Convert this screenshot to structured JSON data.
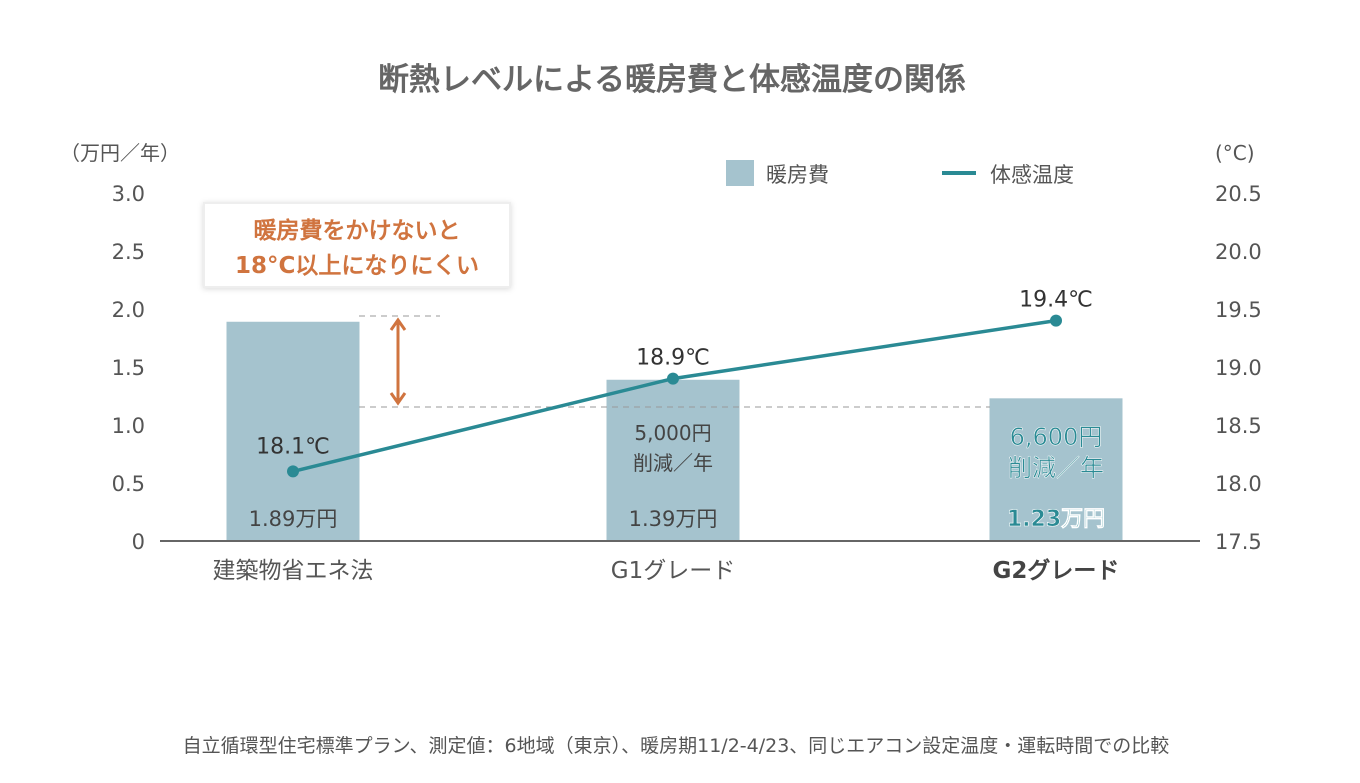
{
  "chart_data": {
    "type": "bar",
    "title": "断熱レベルによる暖房費と体感温度の関係",
    "categories": [
      "建築物省エネ法",
      "G1グレード",
      "G2グレード"
    ],
    "y_left": {
      "label": "（万円／年）",
      "ylim": [
        0,
        3.0
      ],
      "ticks": [
        "0",
        "0.5",
        "1.0",
        "1.5",
        "2.0",
        "2.5",
        "3.0"
      ]
    },
    "y_right": {
      "label": "(°C)",
      "ylim": [
        17.5,
        20.5
      ],
      "ticks": [
        "17.5",
        "18.0",
        "18.5",
        "19.0",
        "19.5",
        "20.0",
        "20.5"
      ]
    },
    "series": [
      {
        "name": "暖房費",
        "type": "bar",
        "axis": "left",
        "values": [
          1.89,
          1.39,
          1.23
        ],
        "labels": [
          "1.89万円",
          "1.39万円",
          "1.23万円"
        ]
      },
      {
        "name": "体感温度",
        "type": "line",
        "axis": "right",
        "values": [
          18.1,
          18.9,
          19.4
        ],
        "labels": [
          "18.1℃",
          "18.9℃",
          "19.4℃"
        ]
      }
    ],
    "savings": [
      {
        "amount": "5,000円",
        "unit": "削減／年"
      },
      {
        "amount": "6,600円",
        "unit": "削減／年"
      }
    ],
    "annotation": {
      "line1": "暖房費をかけないと",
      "line2": "18°C以上になりにくい"
    },
    "legend_placement": "top-right",
    "footnote": "自立循環型住宅標準プラン、測定値：6地域（東京）、暖房期11/2-4/23、同じエアコン設定温度・運転時間での比較",
    "colors": {
      "bar": "#a5c3ce",
      "line": "#2a8a94",
      "annotation": "#d0743f",
      "text": "#555555",
      "axis": "#666666"
    }
  }
}
